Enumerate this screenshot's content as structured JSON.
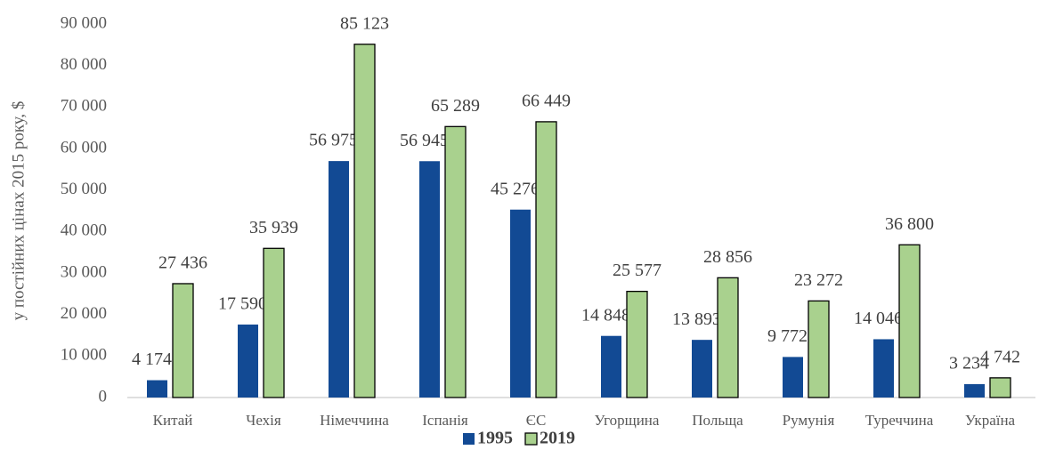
{
  "chart_data": {
    "type": "bar",
    "y_label": "у постійних цінах 2015 року, $",
    "categories": [
      "Китай",
      "Чехія",
      "Німеччина",
      "Іспанія",
      "ЄС",
      "Угорщина",
      "Польща",
      "Румунія",
      "Туреччина",
      "Україна"
    ],
    "series": [
      {
        "name": "1995",
        "color": "#124a94",
        "values": [
          4174,
          17590,
          56975,
          56945,
          45276,
          14848,
          13893,
          9772,
          14046,
          3234
        ],
        "value_labels": [
          "4 174",
          "17 590",
          "56 975",
          "56 945",
          "45 276",
          "14 848",
          "13 893",
          "9 772",
          "14 046",
          "3 234"
        ]
      },
      {
        "name": "2019",
        "color": "#a9d18e",
        "values": [
          27436,
          35939,
          85123,
          65289,
          66449,
          25577,
          28856,
          23272,
          36800,
          4742
        ],
        "value_labels": [
          "27 436",
          "35 939",
          "85 123",
          "65 289",
          "66 449",
          "25 577",
          "28 856",
          "23 272",
          "36 800",
          "4 742"
        ]
      }
    ],
    "ylim": [
      0,
      90000
    ],
    "yticks": [
      0,
      {
        "value": 10000,
        "label": "10 000"
      },
      {
        "value": 20000,
        "label": "20 000"
      },
      {
        "value": 30000,
        "label": "30 000"
      },
      {
        "value": 40000,
        "label": "40 000"
      },
      {
        "value": 50000,
        "label": "50 000"
      },
      {
        "value": 60000,
        "label": "60 000"
      },
      {
        "value": 70000,
        "label": "70 000"
      },
      {
        "value": 80000,
        "label": "80 000"
      },
      {
        "value": 90000,
        "label": "90 000"
      }
    ],
    "grid": false,
    "legend": "bottom"
  }
}
